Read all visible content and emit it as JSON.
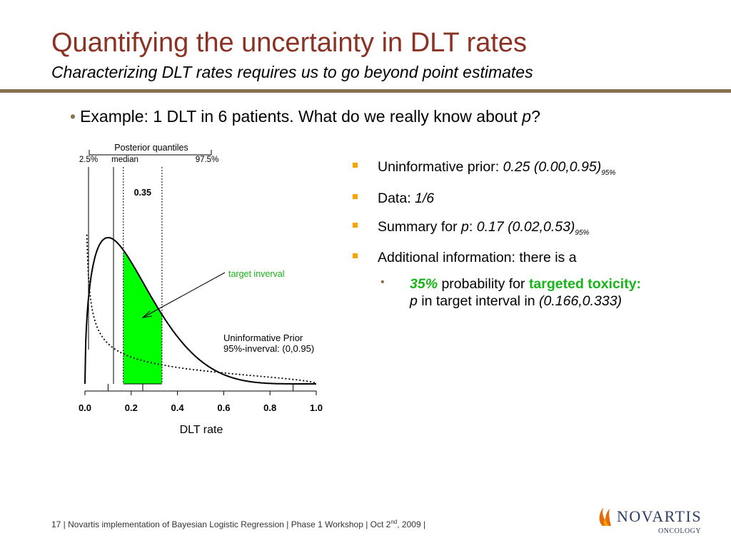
{
  "slide": {
    "title": "Quantifying the uncertainty in DLT rates",
    "subtitle": "Characterizing DLT rates requires us to go beyond point estimates",
    "example_text": "Example: 1 DLT in 6 patients. What do we really know about ",
    "example_var": "p",
    "example_end": "?"
  },
  "bullets": {
    "prior_label": "Uninformative prior: ",
    "prior_value": "0.25 (0.00,0.95)",
    "prior_sub": "95%",
    "data_label": "Data: ",
    "data_value": "1/6",
    "summary_label": "Summary for ",
    "summary_var": "p",
    "summary_colon": ": ",
    "summary_value": "0.17 (0.02,0.53)",
    "summary_sub": "95%",
    "additional": "Additional information: there is a",
    "sub_pct": "35%",
    "sub_prob": " probability for ",
    "sub_targeted": "targeted toxicity:",
    "sub_p": "p",
    "sub_interval": " in target interval in ",
    "sub_range": "(0.166,0.333)"
  },
  "colors": {
    "title": "#8a3325",
    "rule": "#8a7152",
    "bullet_square": "#f5a400",
    "highlight": "#19b419",
    "fill": "#00ff00"
  },
  "chart_data": {
    "type": "line",
    "xlabel": "DLT rate",
    "ylabel": "",
    "xlim": [
      0,
      1
    ],
    "ticks": [
      "0.0",
      "0.2",
      "0.4",
      "0.6",
      "0.8",
      "1.0"
    ],
    "series": [
      {
        "style": "solid",
        "distribution": "Beta(1.5, 5.5)"
      },
      {
        "style": "dotted",
        "distribution": "Beta(0.5, 1.5)"
      }
    ],
    "posterior_quantiles": {
      "q025": 0.02,
      "median": 0.17,
      "q975": 0.53
    },
    "target_interval": [
      0.166,
      0.333
    ],
    "target_probability": "0.35",
    "annotations": {
      "quantiles_header": "Posterior quantiles",
      "q025_label": "2.5%",
      "median_label": "median",
      "q975_label": "97.5%",
      "target_label": "target inverval",
      "prior_line1": "Uninformative Prior",
      "prior_line2": "95%-inverval: (0,0.95)"
    }
  },
  "footer": {
    "text": "17 | Novartis implementation of Bayesian Logistic Regression | Phase 1 Workshop | Oct 2",
    "sup": "nd",
    "end": ", 2009 |"
  },
  "logo": {
    "name": "NOVARTIS",
    "division": "ONCOLOGY"
  }
}
